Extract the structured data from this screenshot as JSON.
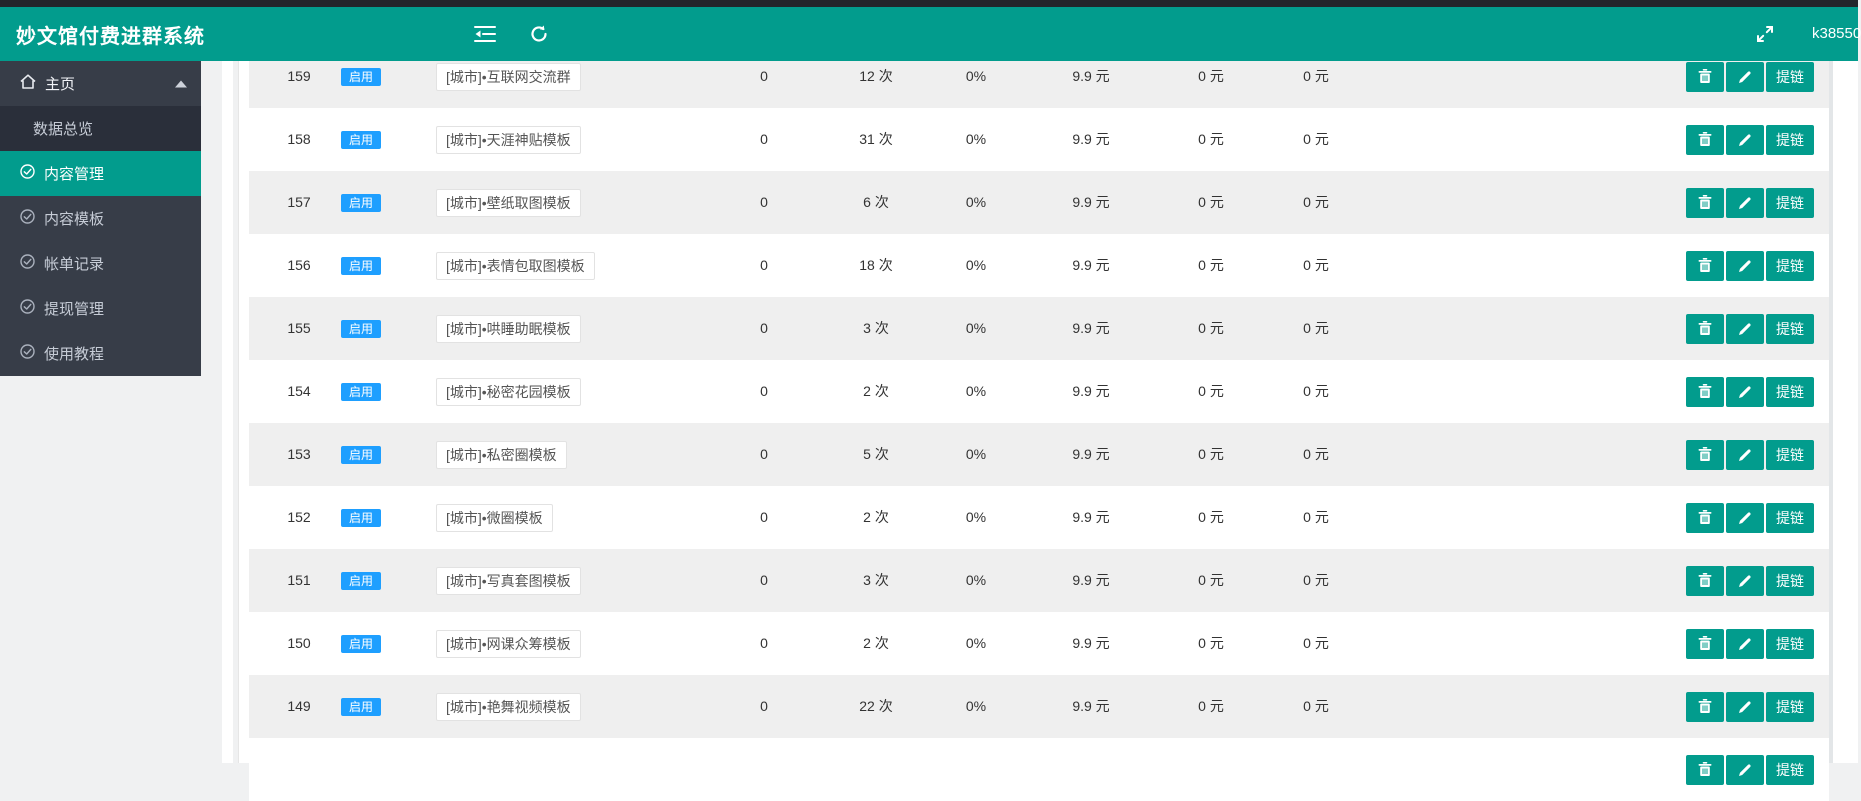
{
  "header": {
    "title": "妙文馆付费进群系统",
    "username": "k38550",
    "icons": [
      "menu-fold-icon",
      "refresh-icon",
      "fullscreen-icon"
    ]
  },
  "sidebar": {
    "parent": {
      "label": "主页",
      "icon": "home-icon",
      "state": "expanded"
    },
    "items": [
      {
        "label": "数据总览",
        "icon": null,
        "active": false,
        "dark": true
      },
      {
        "label": "内容管理",
        "icon": "check-circle-icon",
        "active": true,
        "dark": false
      },
      {
        "label": "内容模板",
        "icon": "check-circle-icon",
        "active": false,
        "dark": false
      },
      {
        "label": "帐单记录",
        "icon": "check-circle-icon",
        "active": false,
        "dark": false
      },
      {
        "label": "提现管理",
        "icon": "check-circle-icon",
        "active": false,
        "dark": false
      },
      {
        "label": "使用教程",
        "icon": "check-circle-icon",
        "active": false,
        "dark": false
      }
    ]
  },
  "table": {
    "status_label": "启用",
    "link_label": "提链",
    "action_icons": [
      "trash-icon",
      "pencil-icon"
    ],
    "rows": [
      {
        "id": "159",
        "name": "[城市]•互联网交流群",
        "count": "0",
        "times": "12 次",
        "pct": "0%",
        "price": "9.9 元",
        "income": "0 元",
        "income2": "0 元"
      },
      {
        "id": "158",
        "name": "[城市]•天涯神贴模板",
        "count": "0",
        "times": "31 次",
        "pct": "0%",
        "price": "9.9 元",
        "income": "0 元",
        "income2": "0 元"
      },
      {
        "id": "157",
        "name": "[城市]•壁纸取图模板",
        "count": "0",
        "times": "6 次",
        "pct": "0%",
        "price": "9.9 元",
        "income": "0 元",
        "income2": "0 元"
      },
      {
        "id": "156",
        "name": "[城市]•表情包取图模板",
        "count": "0",
        "times": "18 次",
        "pct": "0%",
        "price": "9.9 元",
        "income": "0 元",
        "income2": "0 元"
      },
      {
        "id": "155",
        "name": "[城市]•哄睡助眠模板",
        "count": "0",
        "times": "3 次",
        "pct": "0%",
        "price": "9.9 元",
        "income": "0 元",
        "income2": "0 元"
      },
      {
        "id": "154",
        "name": "[城市]•秘密花园模板",
        "count": "0",
        "times": "2 次",
        "pct": "0%",
        "price": "9.9 元",
        "income": "0 元",
        "income2": "0 元"
      },
      {
        "id": "153",
        "name": "[城市]•私密圈模板",
        "count": "0",
        "times": "5 次",
        "pct": "0%",
        "price": "9.9 元",
        "income": "0 元",
        "income2": "0 元"
      },
      {
        "id": "152",
        "name": "[城市]•微圈模板",
        "count": "0",
        "times": "2 次",
        "pct": "0%",
        "price": "9.9 元",
        "income": "0 元",
        "income2": "0 元"
      },
      {
        "id": "151",
        "name": "[城市]•写真套图模板",
        "count": "0",
        "times": "3 次",
        "pct": "0%",
        "price": "9.9 元",
        "income": "0 元",
        "income2": "0 元"
      },
      {
        "id": "150",
        "name": "[城市]•网课众筹模板",
        "count": "0",
        "times": "2 次",
        "pct": "0%",
        "price": "9.9 元",
        "income": "0 元",
        "income2": "0 元"
      },
      {
        "id": "149",
        "name": "[城市]•艳舞视频模板",
        "count": "0",
        "times": "22 次",
        "pct": "0%",
        "price": "9.9 元",
        "income": "0 元",
        "income2": "0 元"
      }
    ],
    "partial_bottom_row": {
      "visible": "actions-only"
    }
  },
  "colors": {
    "teal": "#029c8d",
    "sidebar_dark": "#373d48",
    "submenu_dark": "#2a2f3a",
    "badge_blue": "#1e9fff",
    "stripe_gray": "#efefef",
    "top_strip": "#23252b"
  }
}
